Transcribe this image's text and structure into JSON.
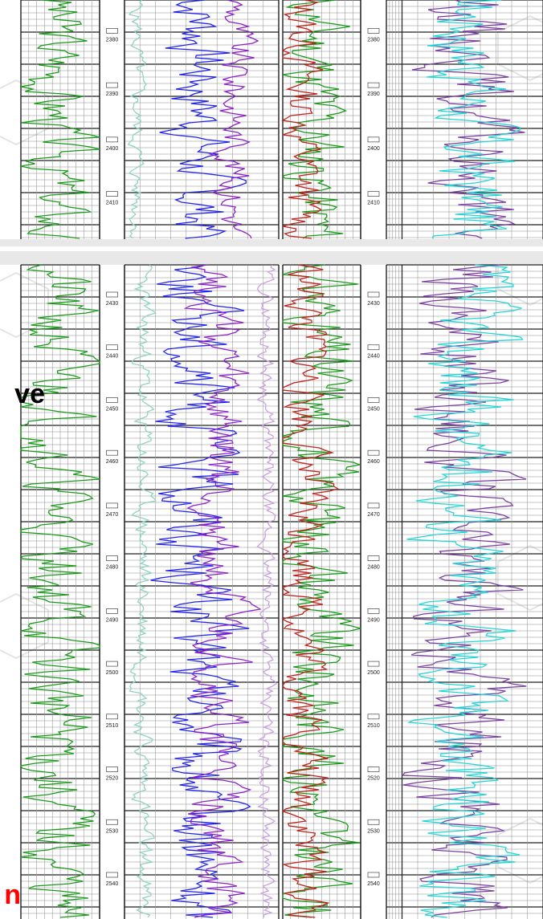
{
  "chart_data": [
    {
      "type": "line",
      "panel": "upper",
      "depth_labels": [
        "2380",
        "2390",
        "2400",
        "2410"
      ],
      "tracks": {
        "track1": {
          "series": [
            {
              "color": "#1a9a1a",
              "amplitude": 0.35,
              "center": 0.45,
              "seed": 3
            }
          ]
        },
        "track2": {
          "series": [
            {
              "color": "#8fd3c2",
              "amplitude": 0.04,
              "center": 0.08,
              "seed": 5
            },
            {
              "color": "#2222ee",
              "amplitude": 0.18,
              "center": 0.5,
              "seed": 7
            },
            {
              "color": "#8a22c8",
              "amplitude": 0.1,
              "center": 0.72,
              "seed": 9
            }
          ]
        },
        "track3": {
          "series": [
            {
              "color": "#1a9a1a",
              "amplitude": 0.35,
              "center": 0.4,
              "seed": 11
            },
            {
              "color": "#c0201a",
              "amplitude": 0.22,
              "center": 0.25,
              "seed": 13
            }
          ]
        },
        "track4": {
          "series": [
            {
              "color": "#7a3fa0",
              "amplitude": 0.22,
              "center": 0.55,
              "seed": 15
            },
            {
              "color": "#22d6d6",
              "amplitude": 0.22,
              "center": 0.55,
              "seed": 17
            }
          ]
        }
      }
    },
    {
      "type": "line",
      "panel": "lower",
      "depth_labels": [
        "2430",
        "2440",
        "2450",
        "2460",
        "2470",
        "2480",
        "2490",
        "2500",
        "2510",
        "2520",
        "2530",
        "2540"
      ],
      "tracks": {
        "track1": {
          "series": [
            {
              "color": "#1a9a1a",
              "amplitude": 0.4,
              "center": 0.45,
              "seed": 21
            }
          ]
        },
        "track2": {
          "series": [
            {
              "color": "#8fd3c2",
              "amplitude": 0.05,
              "center": 0.12,
              "seed": 23
            },
            {
              "color": "#2222ee",
              "amplitude": 0.2,
              "center": 0.48,
              "seed": 25
            },
            {
              "color": "#8a22c8",
              "amplitude": 0.14,
              "center": 0.6,
              "seed": 27
            },
            {
              "color": "#c9a0e0",
              "amplitude": 0.04,
              "center": 0.92,
              "seed": 29
            }
          ]
        },
        "track3": {
          "series": [
            {
              "color": "#1a9a1a",
              "amplitude": 0.38,
              "center": 0.45,
              "seed": 31
            },
            {
              "color": "#c0201a",
              "amplitude": 0.25,
              "center": 0.3,
              "seed": 33
            }
          ]
        },
        "track4": {
          "series": [
            {
              "color": "#7a3fa0",
              "amplitude": 0.24,
              "center": 0.5,
              "seed": 35
            },
            {
              "color": "#22d6d6",
              "amplitude": 0.24,
              "center": 0.5,
              "seed": 37
            }
          ]
        }
      }
    }
  ],
  "side_text": {
    "top": "ve",
    "bottom": "n"
  },
  "colors": {
    "grid_minor": "#8a8a8a",
    "grid_major": "#202020",
    "panel_gap": "#e8e8e8",
    "side_bottom": "#ff0000"
  }
}
